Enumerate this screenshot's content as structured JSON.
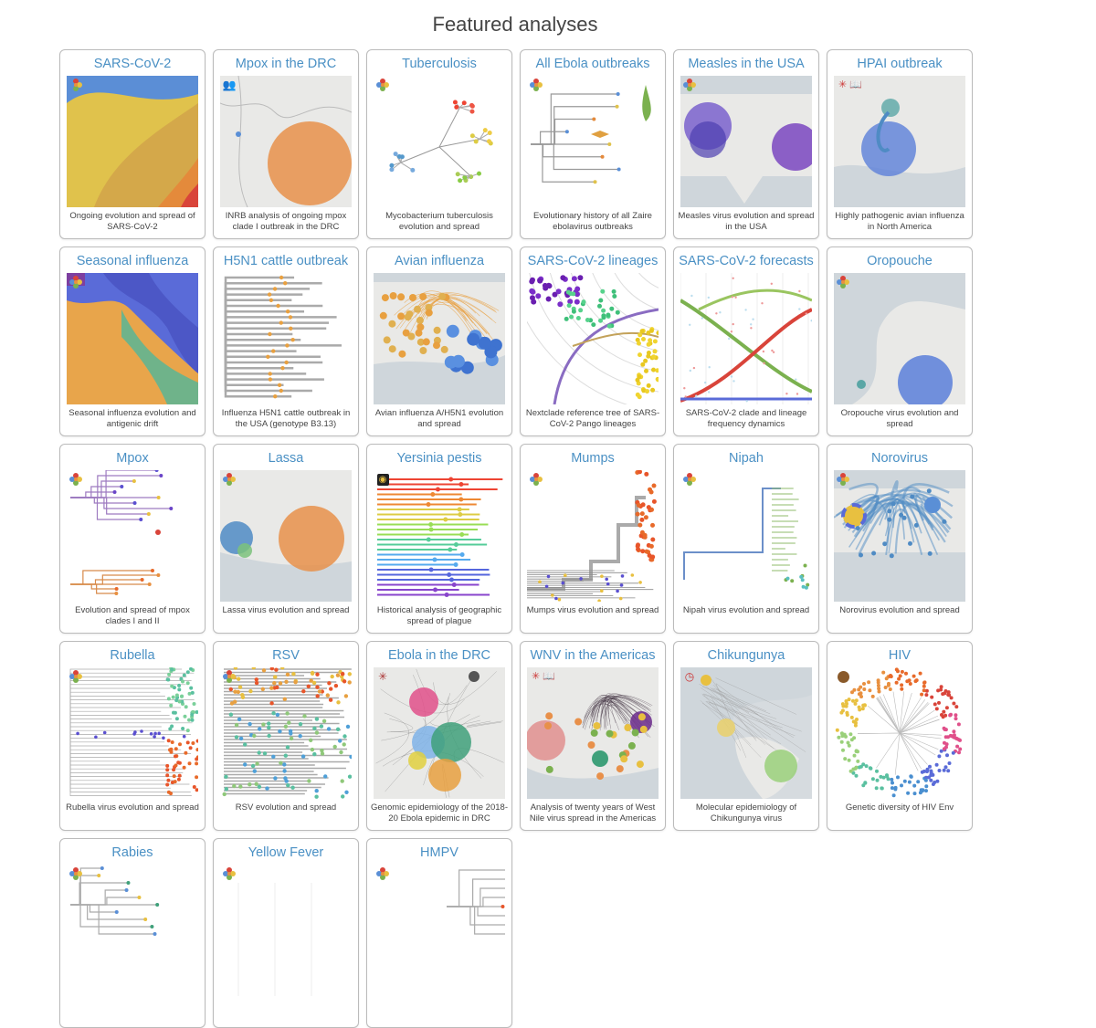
{
  "page": {
    "title": "Featured analyses"
  },
  "cards": [
    {
      "title": "SARS-CoV-2",
      "caption": "Ongoing evolution and spread of SARS-CoV-2",
      "thumb": "stream1",
      "badge": "nextstrain"
    },
    {
      "title": "Mpox in the DRC",
      "caption": "INRB analysis of ongoing mpox clade I outbreak in the DRC",
      "thumb": "map-drc",
      "badge": "group"
    },
    {
      "title": "Tuberculosis",
      "caption": "Mycobacterium tuberculosis evolution and spread",
      "thumb": "radial",
      "badge": "nextstrain"
    },
    {
      "title": "All Ebola outbreaks",
      "caption": "Evolutionary history of all Zaire ebolavirus outbreaks",
      "thumb": "tree-ebola",
      "badge": "nextstrain"
    },
    {
      "title": "Measles in the USA",
      "caption": "Measles virus evolution and spread in the USA",
      "thumb": "map-usa",
      "badge": "nextstrain"
    },
    {
      "title": "HPAI outbreak",
      "caption": "Highly pathogenic avian influenza in North America",
      "thumb": "map-hpai",
      "badge": "virus-book"
    },
    {
      "title": "Seasonal influenza",
      "caption": "Seasonal influenza evolution and antigenic drift",
      "thumb": "stream2",
      "badge": "nextstrain"
    },
    {
      "title": "H5N1 cattle outbreak",
      "caption": "Influenza H5N1 cattle outbreak in the USA (genotype B3.13)",
      "thumb": "tree-grey",
      "badge": "none"
    },
    {
      "title": "Avian influenza",
      "caption": "Avian influenza A/H5N1 evolution and spread",
      "thumb": "map-world",
      "badge": "none"
    },
    {
      "title": "SARS-CoV-2 lineages",
      "caption": "Nextclade reference tree of SARS-CoV-2 Pango lineages",
      "thumb": "lineages",
      "badge": "none"
    },
    {
      "title": "SARS-CoV-2 forecasts",
      "caption": "SARS-CoV-2 clade and lineage frequency dynamics",
      "thumb": "forecast",
      "badge": "none"
    },
    {
      "title": "Oropouche",
      "caption": "Oropouche virus evolution and spread",
      "thumb": "map-sa",
      "badge": "nextstrain"
    },
    {
      "title": "Mpox",
      "caption": "Evolution and spread of mpox clades I and II",
      "thumb": "tree-mpox",
      "badge": "nextstrain"
    },
    {
      "title": "Lassa",
      "caption": "Lassa virus evolution and spread",
      "thumb": "map-lassa",
      "badge": "nextstrain"
    },
    {
      "title": "Yersinia pestis",
      "caption": "Historical analysis of geographic spread of plague",
      "thumb": "tree-rainbow",
      "badge": "eye"
    },
    {
      "title": "Mumps",
      "caption": "Mumps virus evolution and spread",
      "thumb": "tree-mumps",
      "badge": "nextstrain"
    },
    {
      "title": "Nipah",
      "caption": "Nipah virus evolution and spread",
      "thumb": "tree-nipah",
      "badge": "nextstrain"
    },
    {
      "title": "Norovirus",
      "caption": "Norovirus evolution and spread",
      "thumb": "map-noro",
      "badge": "nextstrain"
    },
    {
      "title": "Rubella",
      "caption": "Rubella virus evolution and spread",
      "thumb": "tree-rubella",
      "badge": "nextstrain"
    },
    {
      "title": "RSV",
      "caption": "RSV evolution and spread",
      "thumb": "tree-rsv",
      "badge": "nextstrain"
    },
    {
      "title": "Ebola in the DRC",
      "caption": "Genomic epidemiology of the 2018-20 Ebola epidemic in DRC",
      "thumb": "map-ebola",
      "badge": "virus"
    },
    {
      "title": "WNV in the Americas",
      "caption": "Analysis of twenty years of West Nile virus spread in the Americas",
      "thumb": "map-wnv",
      "badge": "virus-book"
    },
    {
      "title": "Chikungunya",
      "caption": "Molecular epidemiology of Chikungunya virus",
      "thumb": "map-chik",
      "badge": "clock"
    },
    {
      "title": "HIV",
      "caption": "Genetic diversity of HIV Env",
      "thumb": "radial-hiv",
      "badge": "hiv"
    },
    {
      "title": "Rabies",
      "caption": "",
      "thumb": "tree-rabies",
      "badge": "nextstrain"
    },
    {
      "title": "Yellow Fever",
      "caption": "",
      "thumb": "blank",
      "badge": "nextstrain"
    },
    {
      "title": "HMPV",
      "caption": "",
      "thumb": "tree-hmpv",
      "badge": "nextstrain"
    }
  ]
}
